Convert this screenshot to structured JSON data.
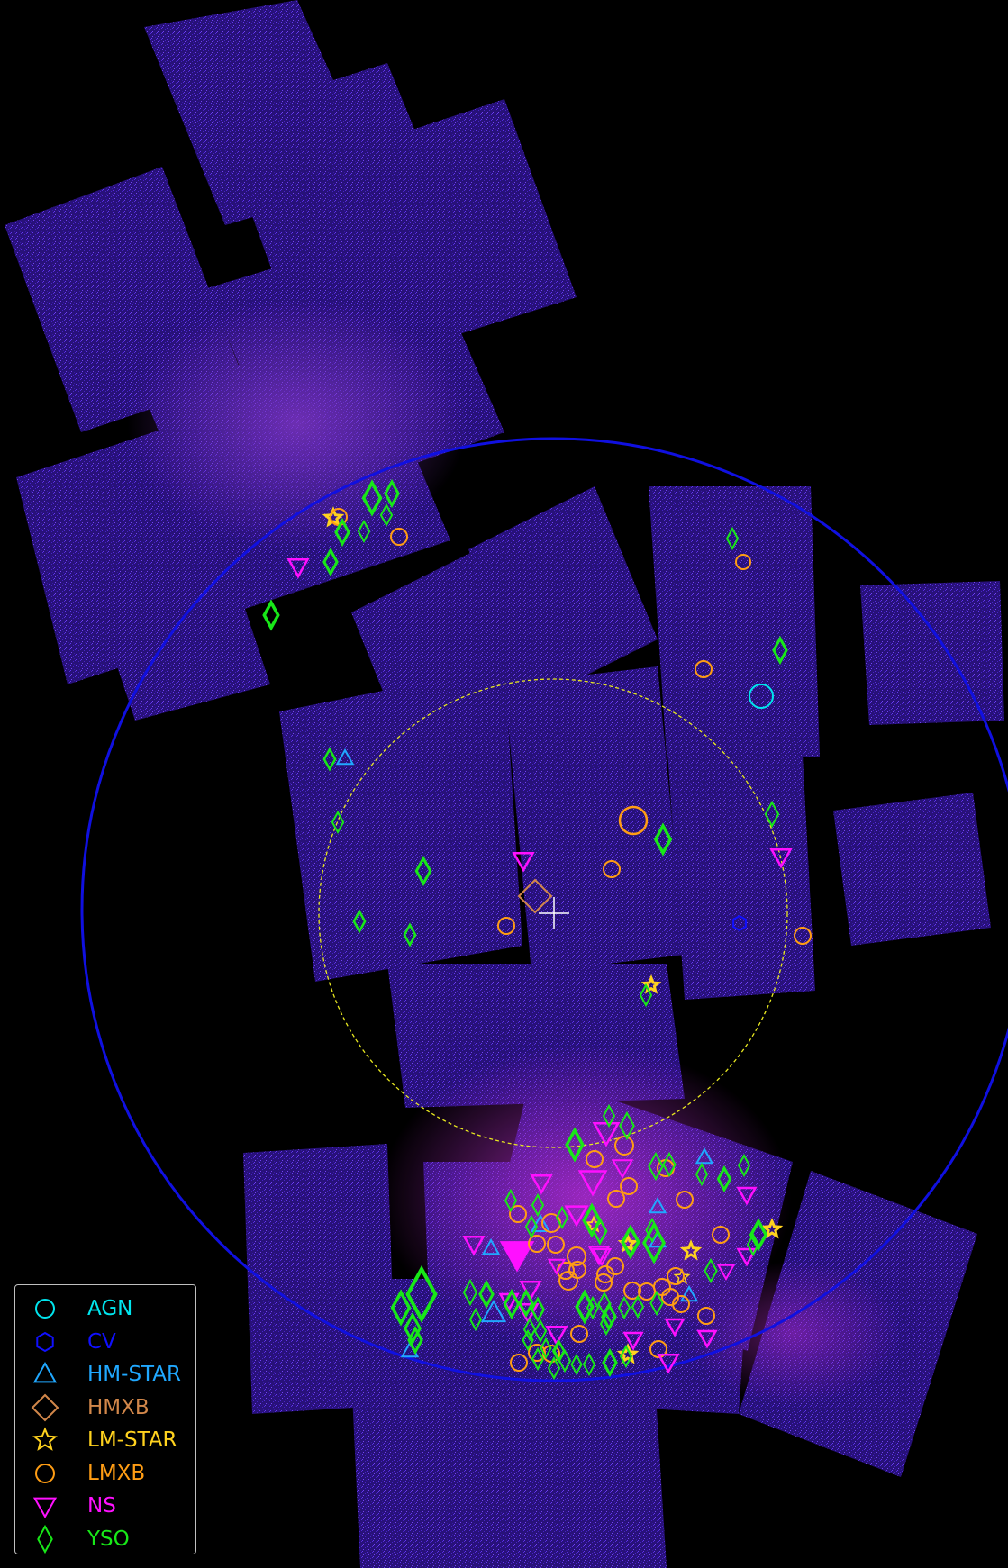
{
  "legend": {
    "items": [
      {
        "label": "AGN",
        "color": "#00e5ee",
        "marker": "circle"
      },
      {
        "label": "CV",
        "color": "#1010ff",
        "marker": "hexagon"
      },
      {
        "label": "HM-STAR",
        "color": "#20a8ff",
        "marker": "triangle-up"
      },
      {
        "label": "HMXB",
        "color": "#d2874a",
        "marker": "diamond"
      },
      {
        "label": "LM-STAR",
        "color": "#ffd21e",
        "marker": "star"
      },
      {
        "label": "LMXB",
        "color": "#ff9d14",
        "marker": "circle"
      },
      {
        "label": "NS",
        "color": "#ff10ff",
        "marker": "triangle-down"
      },
      {
        "label": "YSO",
        "color": "#18e818",
        "marker": "thin-diamond"
      }
    ]
  },
  "overlays": {
    "outer_circle_color": "#1010e0",
    "inner_circle_color": "#e8e820",
    "center_cross_color": "#ffffff",
    "field_color": "#3a16a8"
  }
}
